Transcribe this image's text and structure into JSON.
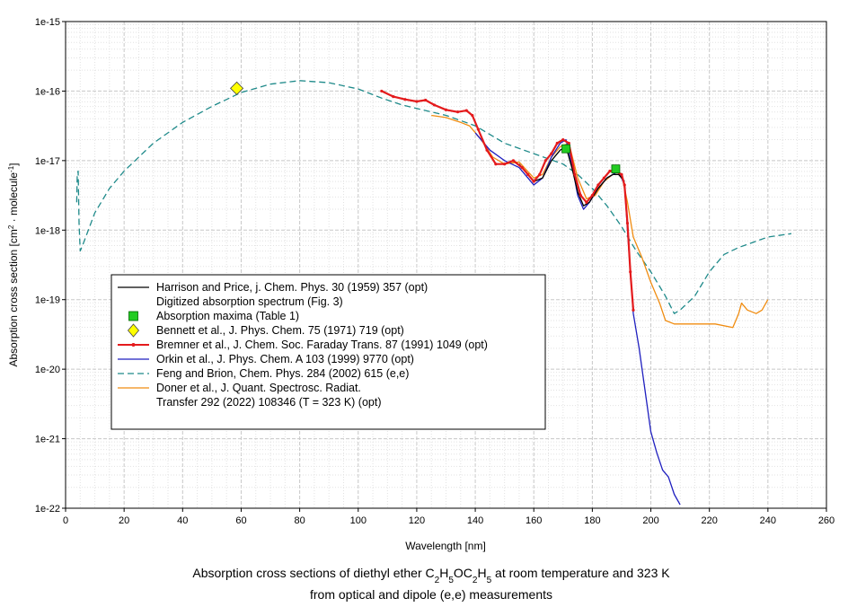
{
  "chart_data": {
    "type": "line",
    "title_line1_pre": "Absorption cross sections of diethyl ether C",
    "title_line1_formula": [
      {
        "t": "2",
        "sub": true
      },
      {
        "t": "H",
        "sub": false
      },
      {
        "t": "5",
        "sub": true
      },
      {
        "t": "OC",
        "sub": false
      },
      {
        "t": "2",
        "sub": true
      },
      {
        "t": "H",
        "sub": false
      },
      {
        "t": "5",
        "sub": true
      }
    ],
    "title_line1_post": " at room temperature and 323 K",
    "title_line2": "from optical and dipole (e,e) measurements",
    "xlabel": "Wavelength [nm]",
    "ylabel_pre": "Absorption cross section [cm",
    "ylabel_sup1": "2",
    "ylabel_mid": " · molecule",
    "ylabel_sup2": "-1",
    "ylabel_post": "]",
    "xlim": [
      0,
      260
    ],
    "ylim_log10": [
      -22,
      -15
    ],
    "yscale": "log",
    "x_ticks": [
      "0",
      "20",
      "40",
      "60",
      "80",
      "100",
      "120",
      "140",
      "160",
      "180",
      "200",
      "220",
      "240",
      "260"
    ],
    "y_ticks": [
      "1e-22",
      "1e-21",
      "1e-20",
      "1e-19",
      "1e-18",
      "1e-17",
      "1e-16",
      "1e-15"
    ],
    "legend": [
      {
        "label": "Harrison and Price, j. Chem. Phys. 30 (1959) 357 (opt)",
        "label2": "Digitized absorption spectrum (Fig. 3)",
        "color": "#000000",
        "style": "line"
      },
      {
        "label": "Absorption maxima (Table 1)",
        "color": "#22cc22",
        "style": "square"
      },
      {
        "label": "Bennett et al., J. Phys. Chem. 75 (1971) 719 (opt)",
        "color": "#ffff00",
        "style": "diamond"
      },
      {
        "label": "Bremner et al., J. Chem. Soc. Faraday Trans. 87 (1991) 1049 (opt)",
        "color": "#e41a1c",
        "style": "line-dot"
      },
      {
        "label": "Orkin et al., J. Phys. Chem. A 103 (1999) 9770 (opt)",
        "color": "#1f1fbf",
        "style": "line"
      },
      {
        "label": "Feng and Brion, Chem. Phys. 284  (2002) 615 (e,e)",
        "color": "#1f8a8a",
        "style": "dash"
      },
      {
        "label": "Doner et al., J. Quant. Spectrosc. Radiat.",
        "label2": "Transfer 292 (2022) 108346  (T = 323 K) (opt)",
        "color": "#f08c10",
        "style": "line"
      }
    ],
    "series": [
      {
        "name": "Feng and Brion",
        "color": "#1f8a8a",
        "style": "dash",
        "points": [
          [
            3.8,
            -17.6
          ],
          [
            4.0,
            -17.2
          ],
          [
            4.3,
            -17.15
          ],
          [
            4.6,
            -17.9
          ],
          [
            5.0,
            -18.3
          ],
          [
            6,
            -18.2
          ],
          [
            10,
            -17.75
          ],
          [
            15,
            -17.4
          ],
          [
            20,
            -17.15
          ],
          [
            30,
            -16.75
          ],
          [
            40,
            -16.45
          ],
          [
            50,
            -16.22
          ],
          [
            60,
            -16.02
          ],
          [
            70,
            -15.9
          ],
          [
            80,
            -15.85
          ],
          [
            90,
            -15.88
          ],
          [
            100,
            -15.97
          ],
          [
            108,
            -16.1
          ],
          [
            115,
            -16.2
          ],
          [
            120,
            -16.25
          ],
          [
            130,
            -16.35
          ],
          [
            140,
            -16.5
          ],
          [
            150,
            -16.75
          ],
          [
            160,
            -16.9
          ],
          [
            170,
            -17.05
          ],
          [
            175,
            -17.2
          ],
          [
            180,
            -17.4
          ],
          [
            185,
            -17.65
          ],
          [
            190,
            -17.95
          ],
          [
            195,
            -18.3
          ],
          [
            200,
            -18.6
          ],
          [
            205,
            -18.95
          ],
          [
            208,
            -19.2
          ],
          [
            210,
            -19.15
          ],
          [
            215,
            -18.95
          ],
          [
            220,
            -18.6
          ],
          [
            225,
            -18.35
          ],
          [
            230,
            -18.25
          ],
          [
            240,
            -18.1
          ],
          [
            248,
            -18.05
          ]
        ]
      },
      {
        "name": "Doner et al.",
        "color": "#f08c10",
        "style": "line",
        "points": [
          [
            125,
            -16.35
          ],
          [
            130,
            -16.38
          ],
          [
            135,
            -16.45
          ],
          [
            138,
            -16.5
          ],
          [
            142,
            -16.7
          ],
          [
            146,
            -16.95
          ],
          [
            150,
            -17.05
          ],
          [
            155,
            -17.02
          ],
          [
            160,
            -17.25
          ],
          [
            163,
            -17.2
          ],
          [
            166,
            -16.95
          ],
          [
            169,
            -16.8
          ],
          [
            172,
            -16.75
          ],
          [
            175,
            -17.25
          ],
          [
            178,
            -17.55
          ],
          [
            181,
            -17.5
          ],
          [
            184,
            -17.3
          ],
          [
            187,
            -17.2
          ],
          [
            190,
            -17.2
          ],
          [
            192,
            -17.6
          ],
          [
            194,
            -18.1
          ],
          [
            197,
            -18.4
          ],
          [
            200,
            -18.75
          ],
          [
            203,
            -19.05
          ],
          [
            205,
            -19.3
          ],
          [
            208,
            -19.35
          ],
          [
            215,
            -19.35
          ],
          [
            222,
            -19.35
          ],
          [
            228,
            -19.4
          ],
          [
            230,
            -19.2
          ],
          [
            231,
            -19.05
          ],
          [
            233,
            -19.15
          ],
          [
            236,
            -19.2
          ],
          [
            238,
            -19.15
          ],
          [
            240,
            -19.0
          ]
        ]
      },
      {
        "name": "Orkin et al.",
        "color": "#1f1fbf",
        "style": "line",
        "points": [
          [
            140,
            -16.6
          ],
          [
            145,
            -16.85
          ],
          [
            150,
            -17.0
          ],
          [
            155,
            -17.1
          ],
          [
            158,
            -17.25
          ],
          [
            160,
            -17.35
          ],
          [
            163,
            -17.25
          ],
          [
            166,
            -16.95
          ],
          [
            169,
            -16.75
          ],
          [
            171,
            -16.7
          ],
          [
            173,
            -17.05
          ],
          [
            175,
            -17.5
          ],
          [
            177,
            -17.7
          ],
          [
            179,
            -17.6
          ],
          [
            182,
            -17.4
          ],
          [
            185,
            -17.25
          ],
          [
            187,
            -17.2
          ],
          [
            189,
            -17.15
          ],
          [
            191,
            -17.35
          ],
          [
            192,
            -18.0
          ],
          [
            193,
            -18.6
          ],
          [
            194,
            -19.2
          ],
          [
            196,
            -19.7
          ],
          [
            198,
            -20.3
          ],
          [
            200,
            -20.9
          ],
          [
            202,
            -21.2
          ],
          [
            204,
            -21.45
          ],
          [
            206,
            -21.55
          ],
          [
            208,
            -21.8
          ],
          [
            210,
            -21.95
          ]
        ]
      },
      {
        "name": "Harrison and Price",
        "color": "#000000",
        "style": "line",
        "points": [
          [
            155,
            -17.05
          ],
          [
            158,
            -17.2
          ],
          [
            160,
            -17.3
          ],
          [
            163,
            -17.25
          ],
          [
            166,
            -17.0
          ],
          [
            169,
            -16.85
          ],
          [
            171,
            -16.8
          ],
          [
            173,
            -17.1
          ],
          [
            175,
            -17.45
          ],
          [
            177,
            -17.65
          ],
          [
            179,
            -17.6
          ],
          [
            182,
            -17.4
          ],
          [
            185,
            -17.25
          ],
          [
            187,
            -17.2
          ],
          [
            189,
            -17.2
          ],
          [
            191,
            -17.3
          ]
        ]
      },
      {
        "name": "Bremner et al.",
        "color": "#e41a1c",
        "style": "line-dot",
        "points": [
          [
            108,
            -16.0
          ],
          [
            112,
            -16.08
          ],
          [
            116,
            -16.12
          ],
          [
            120,
            -16.15
          ],
          [
            123,
            -16.13
          ],
          [
            126,
            -16.2
          ],
          [
            130,
            -16.27
          ],
          [
            134,
            -16.3
          ],
          [
            137,
            -16.28
          ],
          [
            139,
            -16.35
          ],
          [
            141,
            -16.55
          ],
          [
            144,
            -16.85
          ],
          [
            147,
            -17.05
          ],
          [
            150,
            -17.05
          ],
          [
            153,
            -17.0
          ],
          [
            156,
            -17.1
          ],
          [
            158,
            -17.2
          ],
          [
            160,
            -17.3
          ],
          [
            162,
            -17.2
          ],
          [
            164,
            -17.0
          ],
          [
            166,
            -16.9
          ],
          [
            168,
            -16.75
          ],
          [
            170,
            -16.7
          ],
          [
            172,
            -16.75
          ],
          [
            174,
            -17.2
          ],
          [
            176,
            -17.5
          ],
          [
            178,
            -17.6
          ],
          [
            180,
            -17.5
          ],
          [
            182,
            -17.35
          ],
          [
            184,
            -17.25
          ],
          [
            186,
            -17.15
          ],
          [
            188,
            -17.15
          ],
          [
            190,
            -17.2
          ],
          [
            191,
            -17.35
          ],
          [
            192,
            -17.9
          ],
          [
            193,
            -18.6
          ],
          [
            194,
            -19.15
          ]
        ]
      }
    ],
    "markers": [
      {
        "series": "Absorption maxima (Table 1)",
        "shape": "square",
        "color": "#22cc22",
        "points": [
          [
            171,
            -16.83
          ],
          [
            188,
            -17.12
          ]
        ]
      },
      {
        "series": "Bennett et al.",
        "shape": "diamond",
        "color": "#ffff00",
        "points": [
          [
            58.5,
            -15.96
          ]
        ]
      }
    ]
  }
}
